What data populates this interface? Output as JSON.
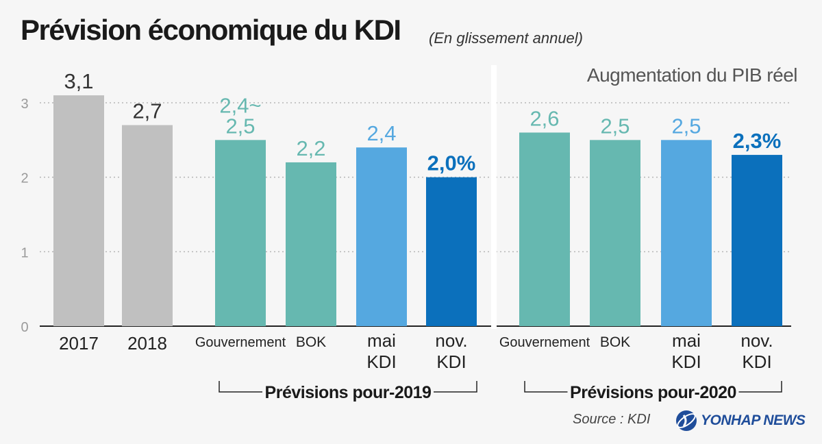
{
  "header": {
    "title": "Prévision économique du KDI",
    "subtitle": "(En glissement annuel)"
  },
  "footer": {
    "source": "Source : KDI",
    "brand": "YONHAP NEWS"
  },
  "chart_data": {
    "type": "bar",
    "title": "Prévision économique du KDI",
    "subtitle": "(En glissement annuel)",
    "ylabel": "Augmentation du PIB réel",
    "ylim": [
      0,
      3.3
    ],
    "yticks": [
      0,
      1,
      2,
      3
    ],
    "grid": true,
    "categories": [
      "2017",
      "2018",
      "Gouvernement",
      "BOK",
      "mai KDI",
      "nov. KDI",
      "Gouvernement",
      "BOK",
      "mai KDI",
      "nov. KDI"
    ],
    "bars": [
      {
        "category": "2017",
        "label_lines": [
          "2017"
        ],
        "value": 3.1,
        "value_label": [
          "3,1"
        ],
        "color": "#c0c0c0",
        "label_color": "#333333",
        "group": null
      },
      {
        "category": "2018",
        "label_lines": [
          "2018"
        ],
        "value": 2.7,
        "value_label": [
          "2,7"
        ],
        "color": "#c0c0c0",
        "label_color": "#333333",
        "group": null
      },
      {
        "category": "Gouvernement",
        "label_lines": [
          "Gouvernement"
        ],
        "value": 2.5,
        "value_label": [
          "2,4~",
          "2,5"
        ],
        "color": "#66b8b0",
        "label_color": "#66b8b0",
        "group": "Prévisions pour-2019"
      },
      {
        "category": "BOK",
        "label_lines": [
          "BOK"
        ],
        "value": 2.2,
        "value_label": [
          "2,2"
        ],
        "color": "#66b8b0",
        "label_color": "#66b8b0",
        "group": "Prévisions pour-2019"
      },
      {
        "category": "mai KDI",
        "label_lines": [
          "mai",
          "KDI"
        ],
        "value": 2.4,
        "value_label": [
          "2,4"
        ],
        "color": "#55a8e0",
        "label_color": "#55a8e0",
        "group": "Prévisions pour-2019"
      },
      {
        "category": "nov. KDI",
        "label_lines": [
          "nov.",
          "KDI"
        ],
        "value": 2.0,
        "value_label": [
          "2,0%"
        ],
        "color": "#0b70bc",
        "label_color": "#0b70bc",
        "group": "Prévisions pour-2019"
      },
      {
        "category": "Gouvernement",
        "label_lines": [
          "Gouvernement"
        ],
        "value": 2.6,
        "value_label": [
          "2,6"
        ],
        "color": "#66b8b0",
        "label_color": "#66b8b0",
        "group": "Prévisions pour-2020"
      },
      {
        "category": "BOK",
        "label_lines": [
          "BOK"
        ],
        "value": 2.5,
        "value_label": [
          "2,5"
        ],
        "color": "#66b8b0",
        "label_color": "#66b8b0",
        "group": "Prévisions pour-2020"
      },
      {
        "category": "mai KDI",
        "label_lines": [
          "mai",
          "KDI"
        ],
        "value": 2.5,
        "value_label": [
          "2,5"
        ],
        "color": "#55a8e0",
        "label_color": "#55a8e0",
        "group": "Prévisions pour-2020"
      },
      {
        "category": "nov. KDI",
        "label_lines": [
          "nov.",
          "KDI"
        ],
        "value": 2.3,
        "value_label": [
          "2,3%"
        ],
        "color": "#0b70bc",
        "label_color": "#0b70bc",
        "group": "Prévisions pour-2020"
      }
    ],
    "groups": [
      "Prévisions pour-2019",
      "Prévisions pour-2020"
    ]
  }
}
